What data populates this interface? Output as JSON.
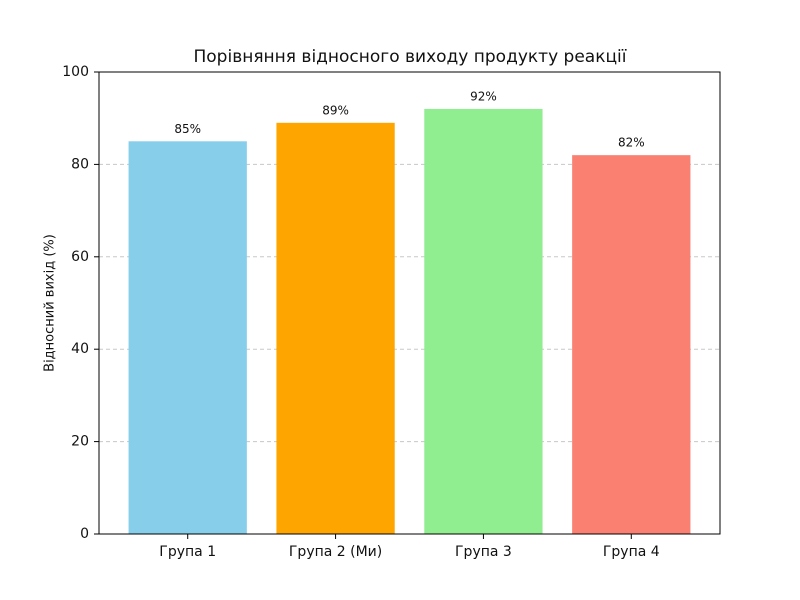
{
  "chart_data": {
    "type": "bar",
    "title": "Порівняння відносного виходу продукту реакції",
    "y_label": "Відносний вихід (%)",
    "categories": [
      "Група 1",
      "Група 2 (Ми)",
      "Група 3",
      "Група 4"
    ],
    "values": [
      85,
      89,
      92,
      82
    ],
    "value_labels": [
      "85%",
      "89%",
      "92%",
      "82%"
    ],
    "colors": [
      "#87ceeb",
      "#ffa500",
      "#90ee90",
      "#fa8072"
    ],
    "ylim": [
      0,
      100
    ],
    "yticks": [
      0,
      20,
      40,
      60,
      80,
      100
    ],
    "grid": true
  }
}
